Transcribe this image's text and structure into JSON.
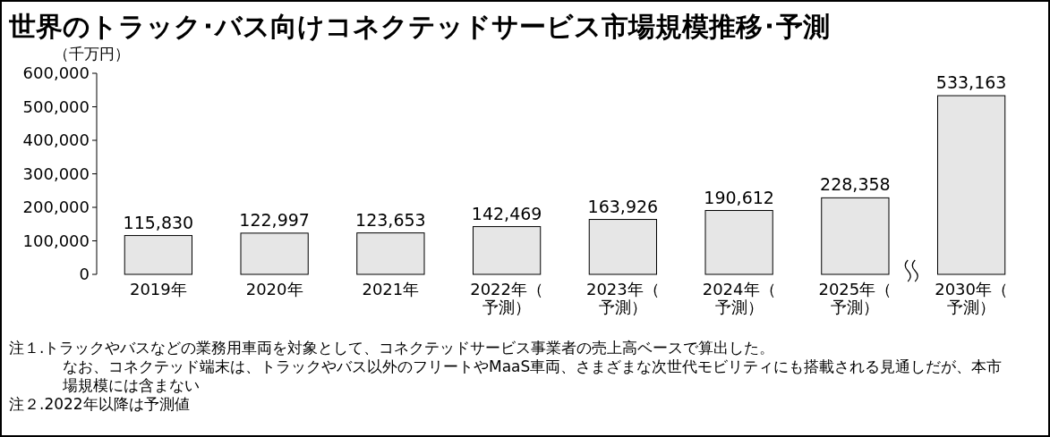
{
  "chart_data": {
    "type": "bar",
    "title": "世界のトラック･バス向けコネクテッドサービス市場規模推移･予測",
    "ylabel": "（千万円）",
    "categories": [
      "2019年",
      "2020年",
      "2021年",
      "2022年（予測）",
      "2023年（予測）",
      "2024年（予測）",
      "2025年（予測）",
      "2030年（予測）"
    ],
    "values": [
      115830,
      122997,
      123653,
      142469,
      163926,
      190612,
      228358,
      533163
    ],
    "value_labels": [
      "115,830",
      "122,997",
      "123,653",
      "142,469",
      "163,926",
      "190,612",
      "228,358",
      "533,163"
    ],
    "color": "#e6e6e6",
    "ylim": [
      0,
      600000
    ],
    "yticks": [
      0,
      {
        "value": 100000,
        "label": "100,000"
      },
      {
        "value": 200000,
        "label": "200,000"
      },
      {
        "value": 300000,
        "label": "300,000"
      },
      {
        "value": 400000,
        "label": "400,000"
      },
      {
        "value": 500000,
        "label": "500,000"
      },
      {
        "value": 600000,
        "label": "600,000"
      }
    ],
    "grid": false,
    "annotations": [
      "注１.トラックやバスなどの業務用車両を対象として、コネクテッドサービス事業者の売上高ベースで算出した。なお、コネクテッド端末は、トラックやバス以外のフリートやMaaS車両、さまざまな次世代モビリティにも搭載される見通しだが、本市場規模には含まない",
      "注２.2022年以降は予測値"
    ]
  }
}
